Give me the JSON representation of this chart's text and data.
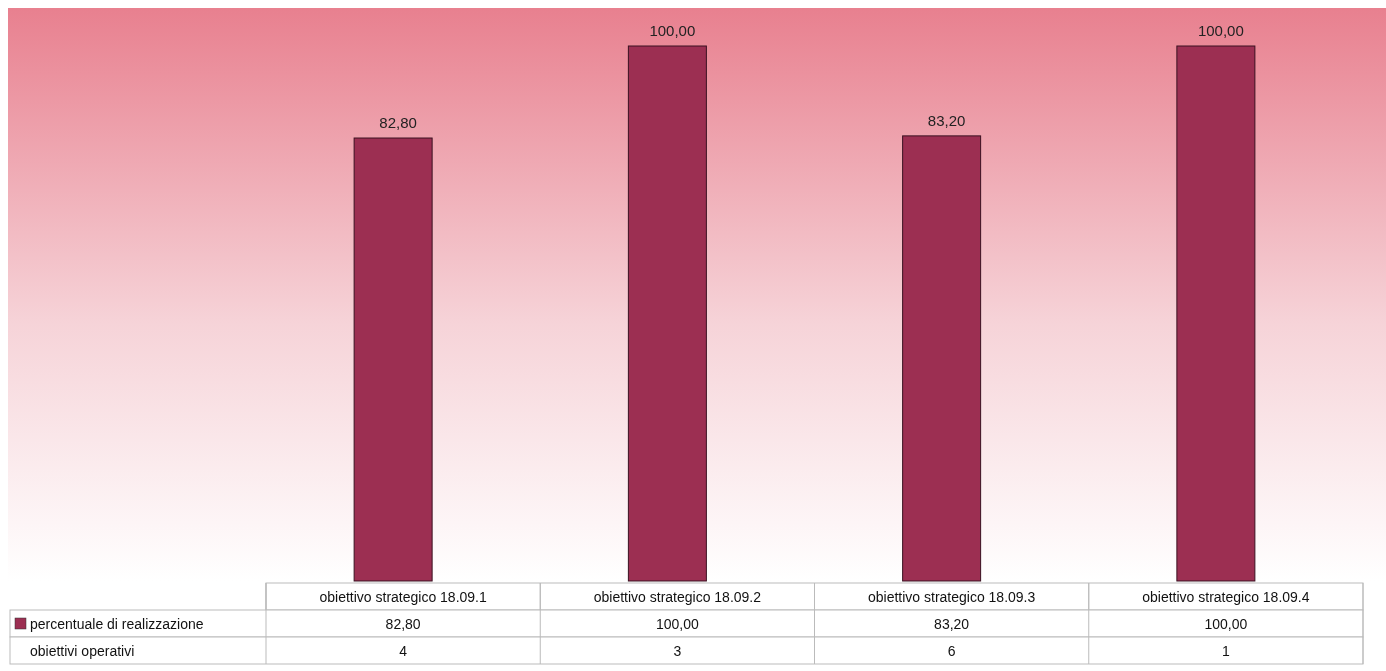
{
  "chart_data": {
    "type": "bar",
    "categories": [
      "obiettivo strategico 18.09.1",
      "obiettivo strategico 18.09.2",
      "obiettivo strategico 18.09.3",
      "obiettivo strategico 18.09.4"
    ],
    "series": [
      {
        "name": "percentuale di realizzazione",
        "color": "#9c2f52",
        "values": [
          82.8,
          100,
          83.2,
          100
        ],
        "value_labels": [
          "82,80",
          "100,00",
          "83,20",
          "100,00"
        ]
      }
    ],
    "annotations": [
      "obiettivi operativi",
      "4",
      "3",
      "6",
      "1"
    ],
    "legend": "bottom"
  }
}
